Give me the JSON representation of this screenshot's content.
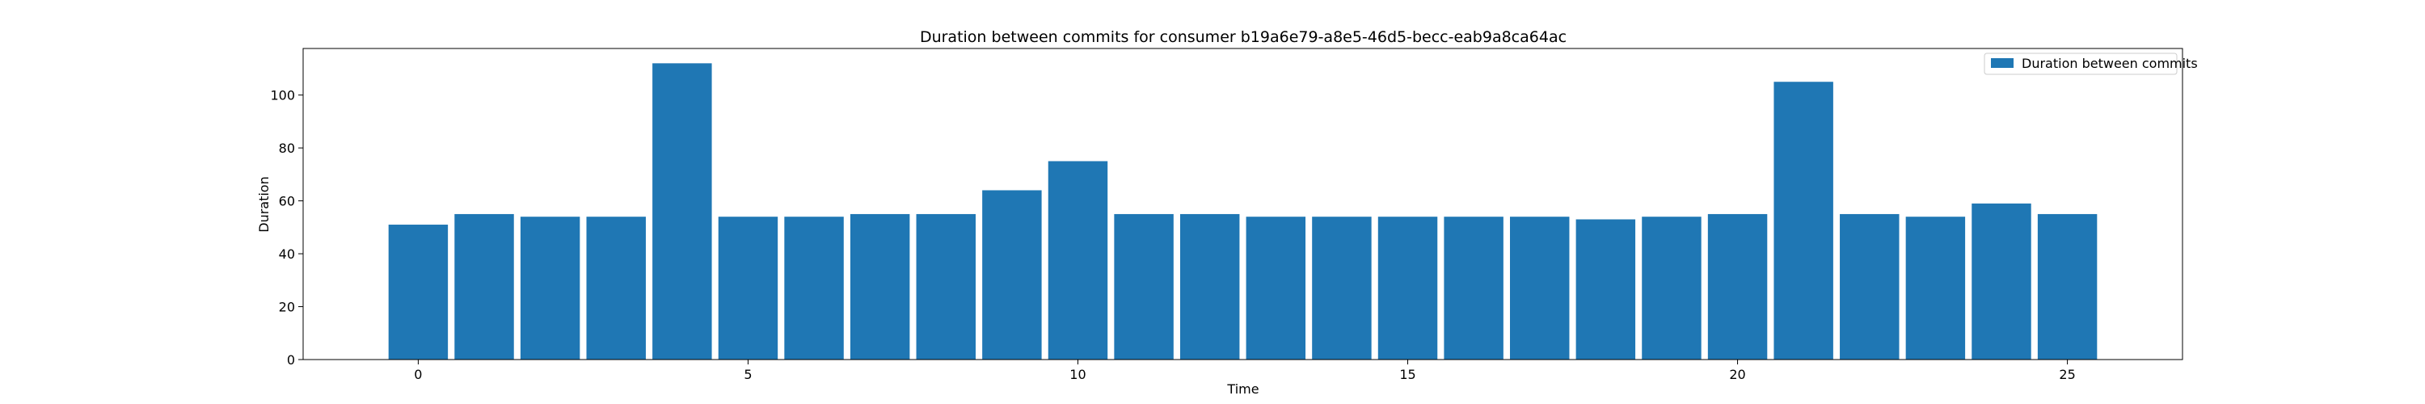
{
  "chart_data": {
    "type": "bar",
    "title": "Duration between commits for consumer b19a6e79-a8e5-46d5-becc-eab9a8ca64ac",
    "xlabel": "Time",
    "ylabel": "Duration",
    "x": [
      0,
      1,
      2,
      3,
      4,
      5,
      6,
      7,
      8,
      9,
      10,
      11,
      12,
      13,
      14,
      15,
      16,
      17,
      18,
      19,
      20,
      21,
      22,
      23,
      24,
      25
    ],
    "series": [
      {
        "name": "Duration between commits",
        "color": "#1f77b4",
        "values": [
          51,
          55,
          54,
          54,
          112,
          54,
          54,
          55,
          55,
          64,
          75,
          55,
          55,
          54,
          54,
          54,
          54,
          54,
          53,
          54,
          55,
          105,
          55,
          54,
          59,
          55
        ]
      }
    ],
    "xlim": [
      -1.745,
      26.745
    ],
    "ylim": [
      0,
      117.6
    ],
    "xticks": [
      0,
      5,
      10,
      15,
      20,
      25
    ],
    "yticks": [
      0,
      20,
      40,
      60,
      80,
      100
    ],
    "grid": false,
    "legend_position": "top-right"
  }
}
